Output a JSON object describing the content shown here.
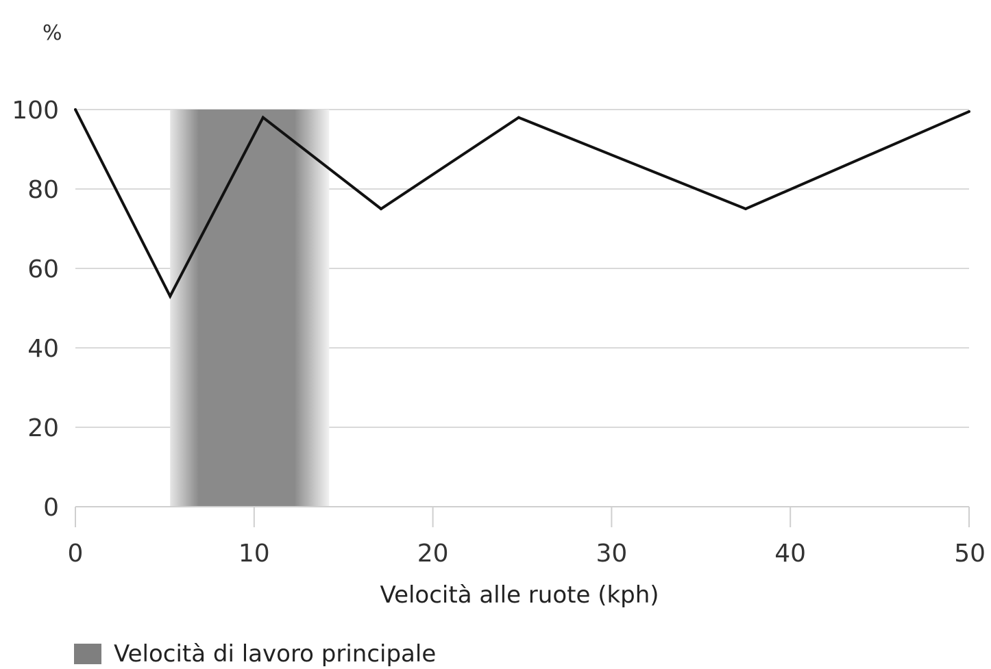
{
  "chart_data": {
    "type": "line",
    "unit_label": "%",
    "xlabel": "Velocità alle ruote (kph)",
    "ylabel": "",
    "xlim": [
      0,
      50
    ],
    "ylim": [
      0,
      100
    ],
    "x_ticks": [
      0,
      10,
      20,
      30,
      40,
      50
    ],
    "y_ticks": [
      0,
      20,
      40,
      60,
      80,
      100
    ],
    "grid": "horizontal",
    "series": [
      {
        "x": [
          0,
          5.3,
          10.5,
          17.1,
          24.8,
          37.5,
          50
        ],
        "values": [
          100,
          53,
          98,
          75,
          98,
          75,
          99.5
        ]
      }
    ],
    "highlight_band": {
      "label": "Velocità di lavoro principale",
      "x_range": [
        5.3,
        14.2
      ],
      "color": "#7f7f7f"
    },
    "legend": {
      "placement": "bottom-left",
      "items": [
        "Velocità di lavoro principale"
      ]
    }
  }
}
